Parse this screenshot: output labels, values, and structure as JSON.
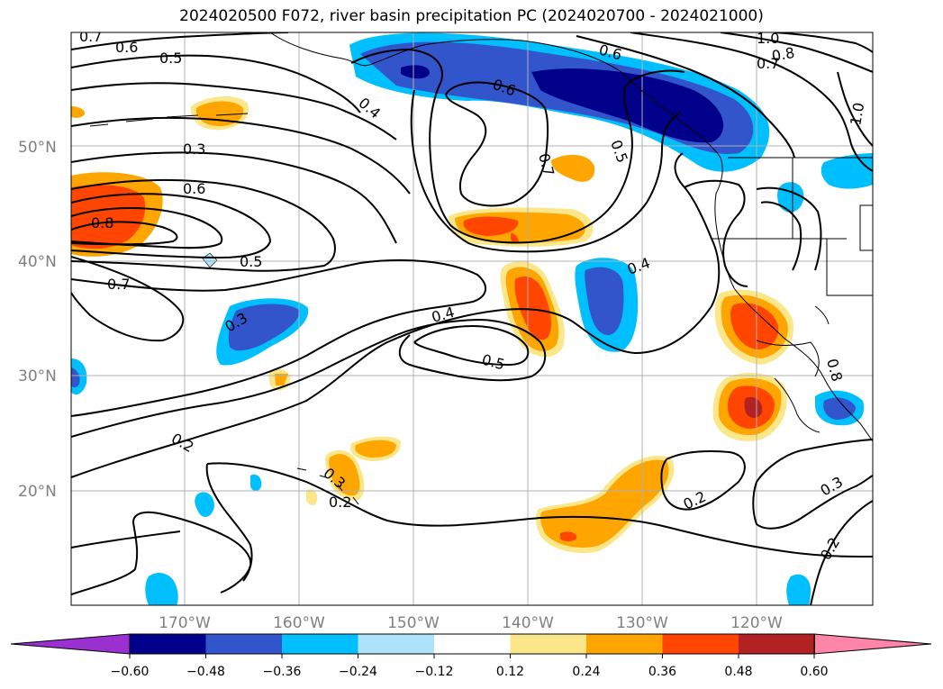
{
  "title": "2024020500 F072, river basin precipitation PC (2024020700 - 2024021000)",
  "map": {
    "lat_labels": [
      "50°N",
      "40°N",
      "30°N",
      "20°N"
    ],
    "lon_labels": [
      "170°W",
      "160°W",
      "150°W",
      "140°W",
      "130°W",
      "120°W"
    ],
    "contour_labels": [
      "0.7",
      "0.6",
      "0.5",
      "0.4",
      "0.6",
      "0.7",
      "0.5",
      "0.3",
      "0.6",
      "0.8",
      "0.5",
      "0.7",
      "0.3",
      "0.4",
      "0.5",
      "0.4",
      "0.2",
      "0.3",
      "0.2",
      "0.2",
      "0.3",
      "0.2",
      "1.0",
      "0.8",
      "0.7",
      "1.0",
      "0.8",
      "0.6"
    ]
  },
  "colorbar": {
    "ticks": [
      "−0.60",
      "−0.48",
      "−0.36",
      "−0.24",
      "−0.12",
      "0.12",
      "0.24",
      "0.36",
      "0.48",
      "0.60"
    ],
    "colors": [
      "#9b30d0",
      "#00008b",
      "#3355cc",
      "#00bfff",
      "#afe3fb",
      "#ffffff",
      "#fbe78a",
      "#ffa500",
      "#ff4500",
      "#b22222",
      "#ff85a8"
    ]
  }
}
